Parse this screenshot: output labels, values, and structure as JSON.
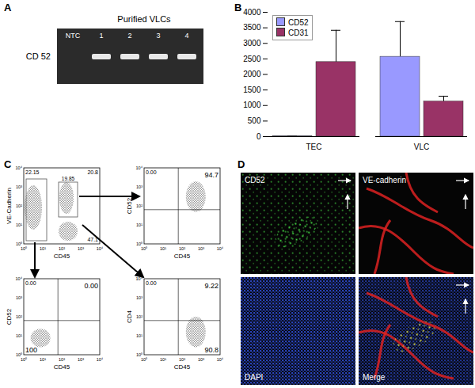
{
  "chart_data": {
    "label": "B",
    "type": "bar",
    "categories": [
      "TEC",
      "VLC"
    ],
    "series": [
      {
        "name": "CD52",
        "color": "#9999ff",
        "values": [
          10,
          2570
        ],
        "errors": [
          0,
          1130
        ]
      },
      {
        "name": "CD31",
        "color": "#993366",
        "values": [
          2400,
          1130
        ],
        "errors": [
          1020,
          170
        ]
      }
    ],
    "ylim": [
      0,
      4000
    ],
    "yticks": [
      0,
      500,
      1000,
      1500,
      2000,
      2500,
      3000,
      3500,
      4000
    ],
    "legend": "top-left",
    "grid": false
  },
  "figure": {
    "A": {
      "label": "A",
      "title": "Purified VLCs",
      "row_label": "CD 52",
      "lanes": [
        "NTC",
        "1",
        "2",
        "3",
        "4"
      ],
      "band": [
        false,
        true,
        true,
        true,
        true
      ]
    },
    "C": {
      "label": "C",
      "axis_ticks": [
        "10⁰",
        "10¹",
        "10²",
        "10³",
        "10⁴"
      ],
      "plots": [
        {
          "x_label": "CD45",
          "y_label": "VE-Cadherin",
          "quadrants": {
            "tl": "22.15",
            "tr": "20.8",
            "br": "47.1"
          },
          "gate": "19.85"
        },
        {
          "x_label": "CD45",
          "y_label": "CD52",
          "quadrants": {
            "tl": "0.00",
            "tr": "94.7"
          }
        },
        {
          "x_label": "CD45",
          "y_label": "CD52",
          "quadrants": {
            "tl": "0.00",
            "tr": "0.00",
            "bl": "100"
          }
        },
        {
          "x_label": "CD45",
          "y_label": "CD4",
          "quadrants": {
            "tl": "0.00",
            "tr": "9.22",
            "br": "90.8"
          }
        }
      ]
    },
    "D": {
      "label": "D",
      "tiles": [
        {
          "label": "CD52",
          "color": "#44dd44"
        },
        {
          "label": "VE-cadherin",
          "color": "#dd2222"
        },
        {
          "label": "DAPI",
          "color": "#3355ee"
        },
        {
          "label": "Merge",
          "color": "#dddd44"
        }
      ]
    }
  }
}
